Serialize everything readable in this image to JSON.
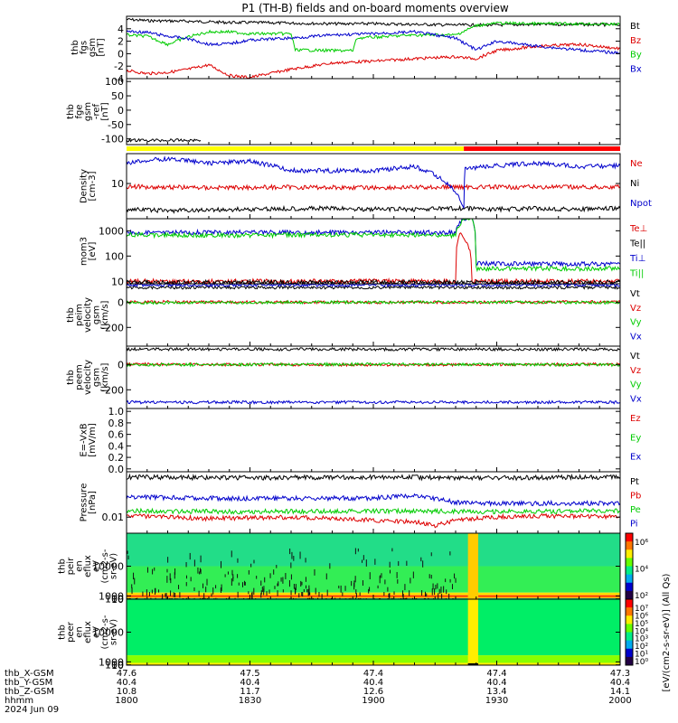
{
  "title": "P1 (TH-B) fields and on-board moments overview",
  "colors": {
    "black": "#000000",
    "red": "#dd0000",
    "green": "#00cc00",
    "blue": "#0000cc",
    "yellow": "#ffff00",
    "bar_red": "#ff0000"
  },
  "mode_bar": {
    "segments": [
      {
        "from": "18:00",
        "to": "19:22",
        "color": "yellow"
      },
      {
        "from": "19:22",
        "to": "20:00",
        "color": "bar_red"
      }
    ]
  },
  "chart_data": [
    {
      "type": "line",
      "id": "fgs",
      "ylabel": [
        "thb",
        "fgs",
        "gsm",
        "[nT]"
      ],
      "ylim": [
        -4,
        6
      ],
      "yticks": [
        "4",
        "2",
        "0",
        "-2",
        "-4"
      ],
      "yticks_values": [
        4,
        2,
        0,
        -2,
        -4
      ],
      "series": [
        {
          "name": "Bt",
          "color": "black",
          "x": [
            0,
            5,
            15,
            20,
            25,
            30,
            40,
            50,
            60,
            70,
            80,
            90,
            100,
            110,
            120
          ],
          "y": [
            5.5,
            5.3,
            5.2,
            5.1,
            5.0,
            5.0,
            4.9,
            4.8,
            4.8,
            4.7,
            4.6,
            4.6,
            4.7,
            4.7,
            4.6
          ]
        },
        {
          "name": "Bz",
          "color": "red",
          "x": [
            0,
            5,
            10,
            15,
            20,
            25,
            30,
            40,
            50,
            60,
            70,
            80,
            85,
            90,
            100,
            110,
            120
          ],
          "y": [
            -2.7,
            -3.2,
            -3.0,
            -2.5,
            -1.8,
            -3.5,
            -3.8,
            -2.5,
            -1.5,
            -1.2,
            -0.8,
            -0.5,
            -0.8,
            0.5,
            1.2,
            1.5,
            0.8
          ]
        },
        {
          "name": "By",
          "color": "green",
          "x": [
            0,
            5,
            10,
            15,
            20,
            25,
            30,
            40,
            41,
            50,
            55,
            56,
            70,
            80,
            85,
            90,
            100,
            110,
            120
          ],
          "y": [
            3.0,
            2.8,
            1.5,
            2.7,
            3.5,
            3.5,
            3.2,
            3.2,
            0.6,
            0.5,
            0.5,
            2.5,
            3.0,
            3.0,
            4.5,
            4.9,
            4.8,
            4.8,
            4.7
          ]
        },
        {
          "name": "Bx",
          "color": "blue",
          "x": [
            0,
            5,
            10,
            15,
            20,
            25,
            30,
            40,
            50,
            60,
            70,
            80,
            85,
            90,
            100,
            110,
            120
          ],
          "y": [
            3.6,
            3.4,
            2.8,
            2.4,
            1.5,
            1.6,
            2.2,
            2.5,
            3.0,
            3.2,
            3.5,
            2.5,
            0.6,
            2.0,
            1.2,
            0.6,
            0.1
          ]
        }
      ]
    },
    {
      "type": "line",
      "id": "fge",
      "ylabel": [
        "thb",
        "fge",
        "gsm",
        "-ref",
        "[nT]"
      ],
      "ylim": [
        -120,
        110
      ],
      "yticks": [
        "100",
        "50",
        "0",
        "-50",
        "-100"
      ],
      "yticks_values": [
        100,
        50,
        0,
        -50,
        -100
      ],
      "series": [
        {
          "name": "fge-ref",
          "color": "black",
          "x": [
            0,
            18
          ],
          "y": [
            -105,
            -105
          ]
        }
      ]
    },
    {
      "type": "line",
      "id": "density",
      "log": true,
      "ylabel": [
        "Density",
        "[cm-3]"
      ],
      "ylim": [
        1.5,
        50
      ],
      "yticks": [
        "10"
      ],
      "yticks_values": [
        10
      ],
      "series": [
        {
          "name": "Ne",
          "color": "red",
          "x": [
            0,
            20,
            40,
            60,
            70,
            80,
            82,
            90,
            100,
            110,
            120
          ],
          "y": [
            8.5,
            8.0,
            8.2,
            8.0,
            8.1,
            8.3,
            8.3,
            8.2,
            8.3,
            8.2,
            8.3
          ]
        },
        {
          "name": "Ni",
          "color": "black",
          "x": [
            0,
            10,
            20,
            30,
            40,
            50,
            60,
            70,
            80,
            82,
            90,
            100,
            110,
            120
          ],
          "y": [
            2.5,
            2.3,
            2.4,
            2.5,
            2.6,
            2.6,
            2.5,
            2.5,
            2.6,
            2.6,
            2.5,
            2.6,
            2.5,
            2.6
          ]
        },
        {
          "name": "Npot",
          "color": "blue",
          "x": [
            0,
            5,
            10,
            15,
            20,
            30,
            40,
            50,
            60,
            70,
            82,
            82.3,
            90,
            100,
            110,
            120
          ],
          "y": [
            30,
            35,
            38,
            34,
            30,
            33,
            20,
            20,
            20,
            25,
            2.4,
            22,
            26,
            30,
            25,
            26
          ]
        }
      ]
    },
    {
      "type": "line",
      "id": "mom",
      "log": true,
      "ylabel": [
        "mom3",
        "[eV]"
      ],
      "ylim": [
        8,
        3000
      ],
      "yticks": [
        "1000",
        "100",
        "10"
      ],
      "yticks_values": [
        1000,
        100,
        10
      ],
      "series": [
        {
          "name": "Te⊥",
          "color": "red",
          "x": [
            0,
            30,
            60,
            80,
            81,
            84,
            90,
            120
          ],
          "y": [
            10,
            10,
            10,
            10,
            800,
            10,
            10,
            10
          ]
        },
        {
          "name": "Te||",
          "color": "black",
          "x": [
            0,
            60,
            80,
            83,
            120
          ],
          "y": [
            9,
            9,
            9,
            9,
            9
          ]
        },
        {
          "name": "Ti⊥",
          "color": "blue",
          "x": [
            0,
            20,
            40,
            60,
            80,
            82,
            84,
            85,
            90,
            120
          ],
          "y": [
            850,
            860,
            870,
            850,
            860,
            3000,
            3000,
            50,
            50,
            48
          ]
        },
        {
          "name": "Ti||",
          "color": "green",
          "x": [
            0,
            20,
            40,
            60,
            80,
            82,
            84,
            85,
            90,
            120
          ],
          "y": [
            700,
            650,
            680,
            700,
            650,
            3000,
            3000,
            30,
            32,
            32
          ]
        }
      ]
    },
    {
      "type": "line",
      "id": "peim",
      "ylabel": [
        "thb",
        "peim",
        "velocity",
        "gsm",
        "[km/s]"
      ],
      "ylim": [
        -350,
        150
      ],
      "yticks": [
        "0",
        "-200"
      ],
      "yticks_values": [
        0,
        -200
      ],
      "series": [
        {
          "name": "Vt",
          "color": "black",
          "x": [
            0,
            120
          ],
          "y": [
            120,
            120
          ]
        },
        {
          "name": "Vz",
          "color": "red",
          "x": [
            0,
            60,
            120
          ],
          "y": [
            5,
            0,
            5
          ]
        },
        {
          "name": "Vy",
          "color": "green",
          "x": [
            0,
            60,
            120
          ],
          "y": [
            -2,
            3,
            0
          ]
        },
        {
          "name": "Vx",
          "color": "blue",
          "x": [
            0,
            120
          ],
          "y": [
            140,
            140
          ]
        }
      ]
    },
    {
      "type": "line",
      "id": "peem",
      "ylabel": [
        "thb",
        "peem",
        "velocity",
        "gsm",
        "[km/s]"
      ],
      "ylim": [
        -350,
        150
      ],
      "yticks": [
        "0",
        "-200"
      ],
      "yticks_values": [
        0,
        -200
      ],
      "series": [
        {
          "name": "Vt",
          "color": "black",
          "x": [
            0,
            120
          ],
          "y": [
            125,
            125
          ]
        },
        {
          "name": "Vz",
          "color": "red",
          "x": [
            0,
            60,
            120
          ],
          "y": [
            5,
            0,
            5
          ]
        },
        {
          "name": "Vy",
          "color": "green",
          "x": [
            0,
            60,
            120
          ],
          "y": [
            0,
            5,
            0
          ]
        },
        {
          "name": "Vx",
          "color": "blue",
          "x": [
            0,
            120
          ],
          "y": [
            -300,
            -300
          ]
        }
      ]
    },
    {
      "type": "line",
      "id": "efield",
      "ylabel": [
        "E=-VxB",
        "[mV/m]"
      ],
      "ylim": [
        -0.05,
        1.05
      ],
      "yticks": [
        "1.0",
        "0.8",
        "0.6",
        "0.4",
        "0.2",
        "0.0"
      ],
      "yticks_values": [
        1.0,
        0.8,
        0.6,
        0.4,
        0.2,
        0.0
      ],
      "series": [
        {
          "name": "Ez",
          "color": "red",
          "x": [],
          "y": []
        },
        {
          "name": "Ey",
          "color": "green",
          "x": [],
          "y": []
        },
        {
          "name": "Ex",
          "color": "blue",
          "x": [],
          "y": []
        }
      ]
    },
    {
      "type": "line",
      "id": "pressure",
      "log": true,
      "ylabel": [
        "Pressure",
        "[nPa]"
      ],
      "ylim": [
        0.003,
        0.3
      ],
      "yticks": [
        "0.01"
      ],
      "yticks_values": [
        0.01
      ],
      "series": [
        {
          "name": "Pt",
          "color": "black",
          "x": [
            0,
            30,
            60,
            90,
            120
          ],
          "y": [
            0.2,
            0.19,
            0.2,
            0.19,
            0.2
          ]
        },
        {
          "name": "Pb",
          "color": "red",
          "x": [
            0,
            20,
            40,
            60,
            70,
            75,
            80,
            90,
            100,
            120
          ],
          "y": [
            0.011,
            0.009,
            0.01,
            0.008,
            0.007,
            0.005,
            0.008,
            0.01,
            0.011,
            0.01
          ]
        },
        {
          "name": "Pe",
          "color": "green",
          "x": [
            0,
            30,
            60,
            90,
            120
          ],
          "y": [
            0.016,
            0.015,
            0.016,
            0.015,
            0.016
          ]
        },
        {
          "name": "Pi",
          "color": "blue",
          "x": [
            0,
            30,
            60,
            70,
            80,
            90,
            120
          ],
          "y": [
            0.045,
            0.04,
            0.042,
            0.05,
            0.03,
            0.028,
            0.028
          ]
        }
      ]
    },
    {
      "type": "heatmap",
      "id": "peir",
      "ylabel": [
        "thb",
        "peir",
        "en",
        "eflux",
        "eV",
        "(cm2-s-",
        "sr-eV)"
      ],
      "ylim": [
        8,
        20000
      ],
      "yticks": [
        "10000",
        "1000",
        "100",
        "10"
      ],
      "yticks_values": [
        10000,
        1000,
        100,
        10
      ],
      "colorbar_ticks": [
        "10⁶",
        "10⁴",
        "10²"
      ]
    },
    {
      "type": "heatmap",
      "id": "peer",
      "ylabel": [
        "thb",
        "peer",
        "en",
        "eflux",
        "eV",
        "(cm2-s-",
        "sr-eV)"
      ],
      "ylim": [
        8,
        20000
      ],
      "yticks": [
        "10000",
        "1000",
        "100",
        "10"
      ],
      "yticks_values": [
        10000,
        1000,
        100,
        10
      ],
      "colorbar_ticks": [
        "10⁷",
        "10⁶",
        "10⁵",
        "10⁴",
        "10³",
        "10²",
        "10¹",
        "10⁰"
      ]
    }
  ],
  "colorbar_label": "[eV/(cm2-s-sr-eV)] (All Qs)",
  "xaxis": {
    "rows": [
      {
        "label": "thb_X-GSM",
        "values": [
          "47.6",
          "47.5",
          "47.4",
          "47.4",
          "47.3"
        ]
      },
      {
        "label": "thb_Y-GSM",
        "values": [
          "40.4",
          "40.4",
          "40.4",
          "40.4",
          "40.4"
        ]
      },
      {
        "label": "thb_Z-GSM",
        "values": [
          "10.8",
          "11.7",
          "12.6",
          "13.4",
          "14.1"
        ]
      },
      {
        "label": "hhmm",
        "values": [
          "1800",
          "1830",
          "1900",
          "1930",
          "2000"
        ]
      }
    ],
    "date": "2024 Jun 09"
  }
}
